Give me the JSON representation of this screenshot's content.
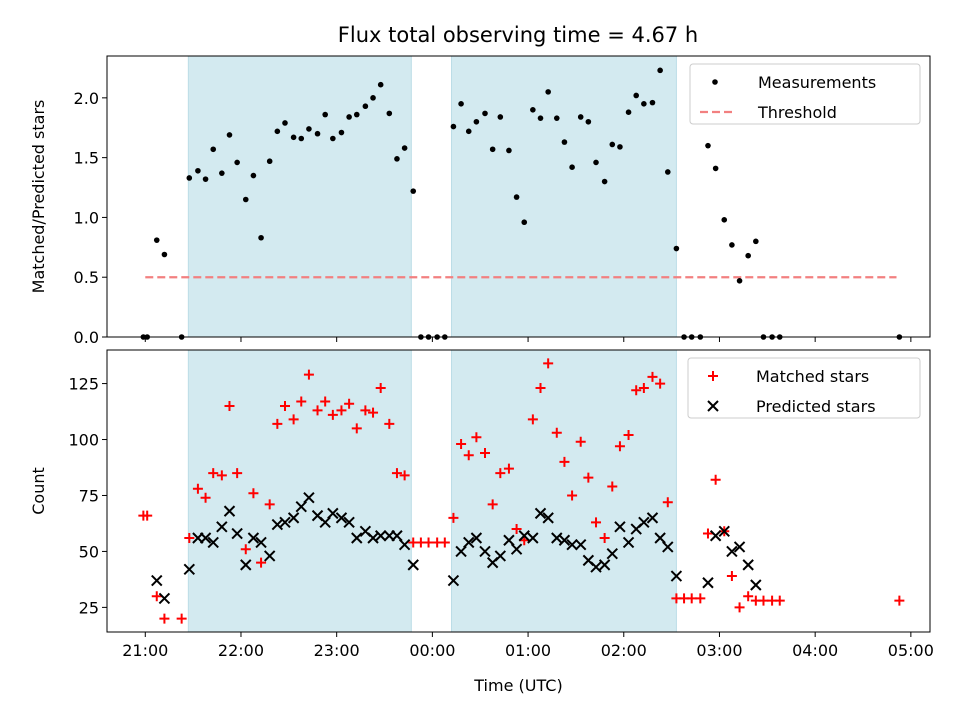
{
  "title": "Flux total observing time = 4.67 h",
  "chart_data": [
    {
      "type": "scatter",
      "ylabel": "Matched/Predicted stars",
      "xlabel": "",
      "ylim": [
        0,
        2.35
      ],
      "xlim": [
        20.6,
        29.2
      ],
      "yticks": [
        "0.0",
        "0.5",
        "1.0",
        "1.5",
        "2.0"
      ],
      "observing_windows": [
        [
          21.45,
          23.78
        ],
        [
          24.2,
          26.55
        ]
      ],
      "window_color": "#d3eaf0",
      "legend": {
        "placement": "top-right",
        "entries": [
          "Measurements",
          "Threshold"
        ]
      },
      "series": [
        {
          "name": "Measurements",
          "marker": "dot",
          "color": "#000000",
          "points": [
            [
              20.98,
              0
            ],
            [
              21.02,
              0
            ],
            [
              21.12,
              0.81
            ],
            [
              21.2,
              0.69
            ],
            [
              21.38,
              0
            ],
            [
              21.46,
              1.33
            ],
            [
              21.55,
              1.39
            ],
            [
              21.63,
              1.32
            ],
            [
              21.71,
              1.57
            ],
            [
              21.8,
              1.37
            ],
            [
              21.88,
              1.69
            ],
            [
              21.96,
              1.46
            ],
            [
              22.05,
              1.15
            ],
            [
              22.13,
              1.35
            ],
            [
              22.21,
              0.83
            ],
            [
              22.3,
              1.47
            ],
            [
              22.38,
              1.72
            ],
            [
              22.46,
              1.79
            ],
            [
              22.55,
              1.67
            ],
            [
              22.63,
              1.66
            ],
            [
              22.71,
              1.74
            ],
            [
              22.8,
              1.7
            ],
            [
              22.88,
              1.86
            ],
            [
              22.96,
              1.66
            ],
            [
              23.05,
              1.71
            ],
            [
              23.13,
              1.84
            ],
            [
              23.21,
              1.86
            ],
            [
              23.3,
              1.93
            ],
            [
              23.38,
              2.0
            ],
            [
              23.46,
              2.11
            ],
            [
              23.55,
              1.87
            ],
            [
              23.63,
              1.49
            ],
            [
              23.71,
              1.58
            ],
            [
              23.8,
              1.22
            ],
            [
              23.88,
              0
            ],
            [
              23.96,
              0
            ],
            [
              24.05,
              0
            ],
            [
              24.13,
              0
            ],
            [
              24.22,
              1.76
            ],
            [
              24.3,
              1.95
            ],
            [
              24.38,
              1.72
            ],
            [
              24.46,
              1.8
            ],
            [
              24.55,
              1.87
            ],
            [
              24.63,
              1.57
            ],
            [
              24.71,
              1.84
            ],
            [
              24.8,
              1.56
            ],
            [
              24.88,
              1.17
            ],
            [
              24.96,
              0.96
            ],
            [
              25.05,
              1.9
            ],
            [
              25.13,
              1.83
            ],
            [
              25.21,
              2.05
            ],
            [
              25.3,
              1.83
            ],
            [
              25.38,
              1.63
            ],
            [
              25.46,
              1.42
            ],
            [
              25.55,
              1.84
            ],
            [
              25.63,
              1.8
            ],
            [
              25.71,
              1.46
            ],
            [
              25.8,
              1.3
            ],
            [
              25.88,
              1.61
            ],
            [
              25.96,
              1.59
            ],
            [
              26.05,
              1.88
            ],
            [
              26.13,
              2.02
            ],
            [
              26.21,
              1.95
            ],
            [
              26.3,
              1.96
            ],
            [
              26.38,
              2.23
            ],
            [
              26.46,
              1.38
            ],
            [
              26.55,
              0.74
            ],
            [
              26.63,
              0
            ],
            [
              26.71,
              0
            ],
            [
              26.8,
              0
            ],
            [
              26.88,
              1.6
            ],
            [
              26.96,
              1.41
            ],
            [
              27.05,
              0.98
            ],
            [
              27.13,
              0.77
            ],
            [
              27.21,
              0.47
            ],
            [
              27.3,
              0.68
            ],
            [
              27.38,
              0.8
            ],
            [
              27.46,
              0
            ],
            [
              27.55,
              0
            ],
            [
              27.63,
              0
            ],
            [
              28.88,
              0
            ]
          ]
        },
        {
          "name": "Threshold",
          "marker": "dashed-line",
          "color": "#f28080",
          "points": [
            [
              21.0,
              0.5
            ],
            [
              28.85,
              0.5
            ]
          ]
        }
      ]
    },
    {
      "type": "scatter",
      "ylabel": "Count",
      "xlabel": "Time (UTC)",
      "ylim": [
        14,
        140
      ],
      "xlim": [
        20.6,
        29.2
      ],
      "yticks": [
        "25",
        "50",
        "75",
        "100",
        "125"
      ],
      "observing_windows": [
        [
          21.45,
          23.78
        ],
        [
          24.2,
          26.55
        ]
      ],
      "window_color": "#d3eaf0",
      "legend": {
        "placement": "top-right",
        "entries": [
          "Matched stars",
          "Predicted stars"
        ]
      },
      "series": [
        {
          "name": "Matched stars",
          "marker": "plus",
          "color": "#ff0000",
          "points": [
            [
              20.98,
              66
            ],
            [
              21.02,
              66
            ],
            [
              21.12,
              30
            ],
            [
              21.2,
              20
            ],
            [
              21.38,
              20
            ],
            [
              21.46,
              56
            ],
            [
              21.55,
              78
            ],
            [
              21.63,
              74
            ],
            [
              21.71,
              85
            ],
            [
              21.8,
              84
            ],
            [
              21.88,
              115
            ],
            [
              21.96,
              85
            ],
            [
              22.05,
              51
            ],
            [
              22.13,
              76
            ],
            [
              22.21,
              45
            ],
            [
              22.3,
              71
            ],
            [
              22.38,
              107
            ],
            [
              22.46,
              115
            ],
            [
              22.55,
              109
            ],
            [
              22.63,
              117
            ],
            [
              22.71,
              129
            ],
            [
              22.8,
              113
            ],
            [
              22.88,
              117
            ],
            [
              22.96,
              111
            ],
            [
              23.05,
              113
            ],
            [
              23.13,
              116
            ],
            [
              23.21,
              105
            ],
            [
              23.3,
              113
            ],
            [
              23.38,
              112
            ],
            [
              23.46,
              123
            ],
            [
              23.55,
              107
            ],
            [
              23.63,
              85
            ],
            [
              23.71,
              84
            ],
            [
              23.8,
              54
            ],
            [
              23.88,
              54
            ],
            [
              23.96,
              54
            ],
            [
              24.05,
              54
            ],
            [
              24.13,
              54
            ],
            [
              24.22,
              65
            ],
            [
              24.3,
              98
            ],
            [
              24.38,
              93
            ],
            [
              24.46,
              101
            ],
            [
              24.55,
              94
            ],
            [
              24.63,
              71
            ],
            [
              24.71,
              85
            ],
            [
              24.8,
              87
            ],
            [
              24.88,
              60
            ],
            [
              24.96,
              55
            ],
            [
              25.05,
              109
            ],
            [
              25.13,
              123
            ],
            [
              25.21,
              134
            ],
            [
              25.3,
              103
            ],
            [
              25.38,
              90
            ],
            [
              25.46,
              75
            ],
            [
              25.55,
              99
            ],
            [
              25.63,
              83
            ],
            [
              25.71,
              63
            ],
            [
              25.8,
              56
            ],
            [
              25.88,
              79
            ],
            [
              25.96,
              97
            ],
            [
              26.05,
              102
            ],
            [
              26.13,
              122
            ],
            [
              26.21,
              123
            ],
            [
              26.3,
              128
            ],
            [
              26.38,
              125
            ],
            [
              26.46,
              72
            ],
            [
              26.55,
              29
            ],
            [
              26.63,
              29
            ],
            [
              26.71,
              29
            ],
            [
              26.8,
              29
            ],
            [
              26.88,
              58
            ],
            [
              26.96,
              82
            ],
            [
              27.05,
              59
            ],
            [
              27.13,
              39
            ],
            [
              27.21,
              25
            ],
            [
              27.3,
              30
            ],
            [
              27.38,
              28
            ],
            [
              27.46,
              28
            ],
            [
              27.55,
              28
            ],
            [
              27.63,
              28
            ],
            [
              28.88,
              28
            ]
          ]
        },
        {
          "name": "Predicted stars",
          "marker": "x",
          "color": "#000000",
          "points": [
            [
              21.12,
              37
            ],
            [
              21.2,
              29
            ],
            [
              21.46,
              42
            ],
            [
              21.55,
              56
            ],
            [
              21.63,
              56
            ],
            [
              21.71,
              54
            ],
            [
              21.8,
              61
            ],
            [
              21.88,
              68
            ],
            [
              21.96,
              58
            ],
            [
              22.05,
              44
            ],
            [
              22.13,
              56
            ],
            [
              22.21,
              54
            ],
            [
              22.3,
              48
            ],
            [
              22.38,
              62
            ],
            [
              22.46,
              63
            ],
            [
              22.55,
              65
            ],
            [
              22.63,
              70
            ],
            [
              22.71,
              74
            ],
            [
              22.8,
              66
            ],
            [
              22.88,
              63
            ],
            [
              22.96,
              67
            ],
            [
              23.05,
              65
            ],
            [
              23.13,
              63
            ],
            [
              23.21,
              56
            ],
            [
              23.3,
              59
            ],
            [
              23.38,
              56
            ],
            [
              23.46,
              57
            ],
            [
              23.55,
              57
            ],
            [
              23.63,
              57
            ],
            [
              23.71,
              53
            ],
            [
              23.8,
              44
            ],
            [
              24.22,
              37
            ],
            [
              24.3,
              50
            ],
            [
              24.38,
              54
            ],
            [
              24.46,
              56
            ],
            [
              24.55,
              50
            ],
            [
              24.63,
              45
            ],
            [
              24.71,
              48
            ],
            [
              24.8,
              55
            ],
            [
              24.88,
              51
            ],
            [
              24.96,
              57
            ],
            [
              25.05,
              56
            ],
            [
              25.13,
              67
            ],
            [
              25.21,
              65
            ],
            [
              25.3,
              56
            ],
            [
              25.38,
              55
            ],
            [
              25.46,
              53
            ],
            [
              25.55,
              53
            ],
            [
              25.63,
              46
            ],
            [
              25.71,
              43
            ],
            [
              25.8,
              44
            ],
            [
              25.88,
              49
            ],
            [
              25.96,
              61
            ],
            [
              26.05,
              54
            ],
            [
              26.13,
              60
            ],
            [
              26.21,
              63
            ],
            [
              26.3,
              65
            ],
            [
              26.38,
              56
            ],
            [
              26.46,
              52
            ],
            [
              26.55,
              39
            ],
            [
              26.88,
              36
            ],
            [
              26.96,
              57
            ],
            [
              27.05,
              59
            ],
            [
              27.13,
              50
            ],
            [
              27.21,
              52
            ],
            [
              27.3,
              44
            ],
            [
              27.38,
              35
            ]
          ]
        }
      ]
    }
  ],
  "xticks": [
    {
      "v": 21,
      "label": "21:00"
    },
    {
      "v": 22,
      "label": "22:00"
    },
    {
      "v": 23,
      "label": "23:00"
    },
    {
      "v": 24,
      "label": "00:00"
    },
    {
      "v": 25,
      "label": "01:00"
    },
    {
      "v": 26,
      "label": "02:00"
    },
    {
      "v": 27,
      "label": "03:00"
    },
    {
      "v": 28,
      "label": "04:00"
    },
    {
      "v": 29,
      "label": "05:00"
    }
  ]
}
